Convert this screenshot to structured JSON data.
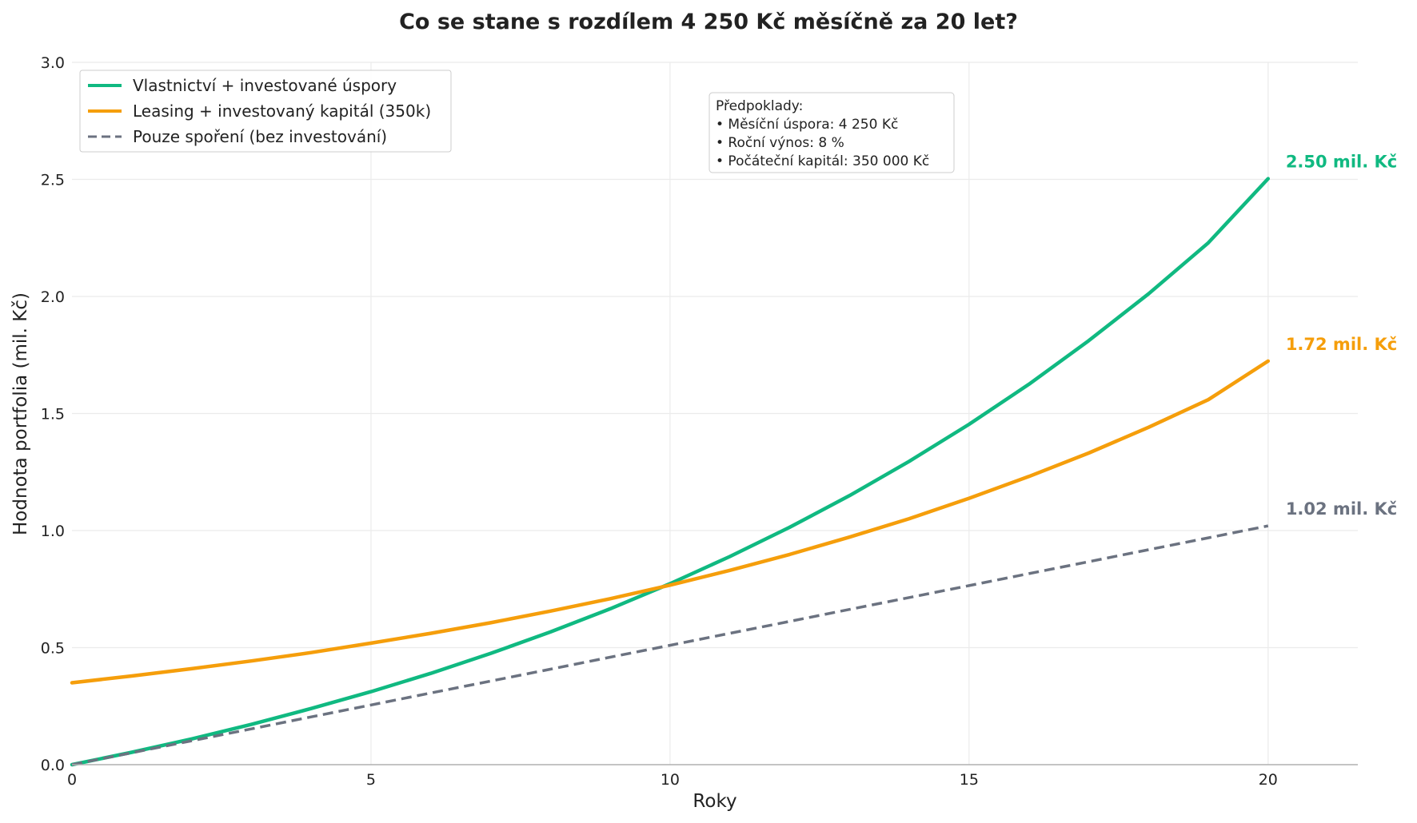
{
  "chart_data": {
    "type": "line",
    "title": "Co se stane s rozdílem 4 250 Kč měsíčně za 20 let?",
    "xlabel": "Roky",
    "ylabel": "Hodnota portfolia (mil. Kč)",
    "xlim": [
      0,
      21.5
    ],
    "ylim": [
      0,
      3.0
    ],
    "xticks": [
      0,
      5,
      10,
      15,
      20
    ],
    "xtick_labels": [
      "0",
      "5",
      "10",
      "15",
      "20"
    ],
    "yticks": [
      0,
      0.5,
      1.0,
      1.5,
      2.0,
      2.5,
      3.0
    ],
    "ytick_labels": [
      "0.0",
      "0.5",
      "1.0",
      "1.5",
      "2.0",
      "2.5",
      "3.0"
    ],
    "grid": true,
    "legend_position": "top-left",
    "x": [
      0,
      1,
      2,
      3,
      4,
      5,
      6,
      7,
      8,
      9,
      10,
      11,
      12,
      13,
      14,
      15,
      16,
      17,
      18,
      19,
      20
    ],
    "series": [
      {
        "name": "Vlastnictví + investované úspory",
        "color": "#10b981",
        "style": "solid",
        "values": [
          0,
          0.053,
          0.11,
          0.172,
          0.24,
          0.312,
          0.39,
          0.475,
          0.567,
          0.666,
          0.773,
          0.889,
          1.014,
          1.149,
          1.296,
          1.454,
          1.625,
          1.811,
          2.011,
          2.229,
          2.503
        ],
        "end_label": "2.50 mil. Kč"
      },
      {
        "name": "Leasing + investovaný kapitál (350k)",
        "color": "#f59e0b",
        "style": "solid",
        "values": [
          0.35,
          0.379,
          0.41,
          0.443,
          0.479,
          0.519,
          0.561,
          0.606,
          0.656,
          0.709,
          0.767,
          0.83,
          0.898,
          0.972,
          1.051,
          1.138,
          1.231,
          1.331,
          1.441,
          1.559,
          1.724
        ],
        "end_label": "1.72 mil. Kč"
      },
      {
        "name": "Pouze spoření (bez investování)",
        "color": "#6b7280",
        "style": "dashed",
        "values": [
          0,
          0.051,
          0.102,
          0.153,
          0.204,
          0.255,
          0.306,
          0.357,
          0.408,
          0.459,
          0.51,
          0.561,
          0.612,
          0.663,
          0.714,
          0.765,
          0.816,
          0.867,
          0.918,
          0.969,
          1.02
        ],
        "end_label": "1.02 mil. Kč"
      }
    ],
    "assumptions_box": {
      "title": "Předpoklady:",
      "lines": [
        "• Měsíční úspora: 4 250 Kč",
        "• Roční výnos: 8 %",
        "• Počáteční kapitál: 350 000 Kč"
      ]
    }
  }
}
